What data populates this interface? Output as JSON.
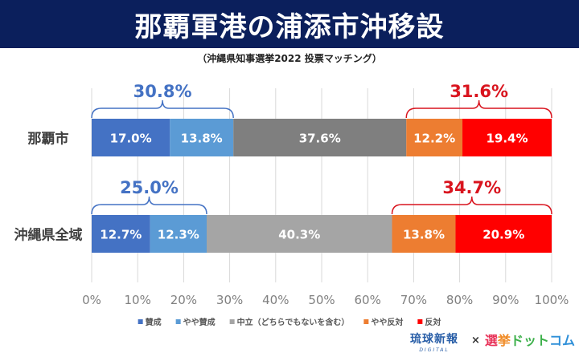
{
  "header": {
    "title": "那覇軍港の浦添市沖移設",
    "subtitle": "（沖縄県知事選挙2022 投票マッチング）"
  },
  "chart_data": {
    "type": "bar",
    "orientation": "horizontal-stacked-100",
    "title": "那覇軍港の浦添市沖移設",
    "subtitle": "（沖縄県知事選挙2022 投票マッチング）",
    "categories": [
      "那覇市",
      "沖縄県全域"
    ],
    "series": [
      {
        "name": "賛成",
        "values": [
          17.0,
          12.7
        ],
        "labels": [
          "17.0%",
          "12.7%"
        ],
        "color": "#4472C4"
      },
      {
        "name": "やや賛成",
        "values": [
          13.8,
          12.3
        ],
        "labels": [
          "13.8%",
          "12.3%"
        ],
        "color": "#5B9BD5"
      },
      {
        "name": "中立（どちらでもないを含む）",
        "values": [
          37.6,
          40.3
        ],
        "labels": [
          "37.6%",
          "40.3%"
        ],
        "color": "#A5A5A5",
        "row_colors": [
          "#7F7F7F",
          "#A5A5A5"
        ]
      },
      {
        "name": "やや反対",
        "values": [
          12.2,
          13.8
        ],
        "labels": [
          "12.2%",
          "13.8%"
        ],
        "color": "#ED7D31"
      },
      {
        "name": "反対",
        "values": [
          19.4,
          20.9
        ],
        "labels": [
          "19.4%",
          "20.9%"
        ],
        "color": "#FF0000"
      }
    ],
    "annotations": [
      {
        "row": 0,
        "side": "support",
        "label": "30.8%",
        "from": 0,
        "to": 30.8,
        "color": "#4472C4"
      },
      {
        "row": 0,
        "side": "oppose",
        "label": "31.6%",
        "from": 68.4,
        "to": 100,
        "color": "#D9141E"
      },
      {
        "row": 1,
        "side": "support",
        "label": "25.0%",
        "from": 0,
        "to": 25.0,
        "color": "#4472C4"
      },
      {
        "row": 1,
        "side": "oppose",
        "label": "34.7%",
        "from": 65.3,
        "to": 100,
        "color": "#D9141E"
      }
    ],
    "xaxis": {
      "range": [
        0,
        100
      ],
      "ticks": [
        0,
        10,
        20,
        30,
        40,
        50,
        60,
        70,
        80,
        90,
        100
      ],
      "tick_labels": [
        "0%",
        "10%",
        "20%",
        "30%",
        "40%",
        "50%",
        "60%",
        "70%",
        "80%",
        "90%",
        "100%"
      ]
    },
    "grid": true,
    "legend": {
      "position": "bottom"
    },
    "xlabel": "",
    "ylabel": ""
  },
  "footer": {
    "logo_left": "琉球新報",
    "logo_left_sub": "DIGITAL",
    "times": "×",
    "logo_right_parts": [
      "選",
      "挙",
      "ドット",
      "コム"
    ]
  }
}
